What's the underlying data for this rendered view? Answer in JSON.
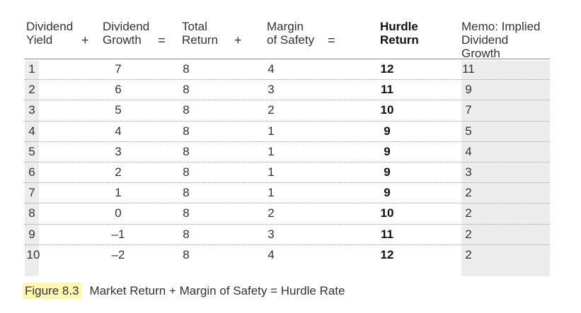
{
  "headers": [
    {
      "line1": "Dividend",
      "line2": "Yield"
    },
    {
      "line1": "Dividend",
      "line2": "Growth"
    },
    {
      "line1": "Total",
      "line2": "Return"
    },
    {
      "line1": "Margin",
      "line2": "of Safety"
    },
    {
      "line1": "Hurdle",
      "line2": "Return"
    },
    {
      "line1": "Memo: Implied",
      "line2": "Dividend Growth"
    }
  ],
  "operators": [
    "+",
    "=",
    "+",
    "="
  ],
  "rows": [
    [
      "1",
      "7",
      "8",
      "4",
      "12",
      "11"
    ],
    [
      "2",
      "6",
      "8",
      "3",
      "11",
      "9"
    ],
    [
      "3",
      "5",
      "8",
      "2",
      "10",
      "7"
    ],
    [
      "4",
      "4",
      "8",
      "1",
      "9",
      "5"
    ],
    [
      "5",
      "3",
      "8",
      "1",
      "9",
      "4"
    ],
    [
      "6",
      "2",
      "8",
      "1",
      "9",
      "3"
    ],
    [
      "7",
      "1",
      "8",
      "1",
      "9",
      "2"
    ],
    [
      "8",
      "0",
      "8",
      "2",
      "10",
      "2"
    ],
    [
      "9",
      "–1",
      "8",
      "3",
      "11",
      "2"
    ],
    [
      "10",
      "–2",
      "8",
      "4",
      "12",
      "2"
    ]
  ],
  "caption": {
    "label": "Figure 8.3",
    "text": "Market Return + Margin of Safety = Hurdle Rate"
  },
  "colors": {
    "shading": "#ececec",
    "caption_highlight": "#fff6b0"
  }
}
